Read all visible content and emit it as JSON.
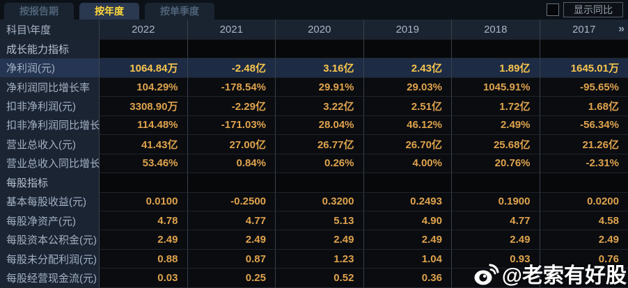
{
  "tabs": [
    {
      "id": "by-report-period",
      "label": "按报告期",
      "active": false
    },
    {
      "id": "by-year",
      "label": "按年度",
      "active": true
    },
    {
      "id": "by-quarter",
      "label": "按单季度",
      "active": false
    }
  ],
  "controls": {
    "show_yoy_label": "显示同比",
    "show_yoy_checked": false
  },
  "table": {
    "corner_header": "科目\\年度",
    "year_columns": [
      "2022",
      "2021",
      "2020",
      "2019",
      "2018",
      "2017"
    ],
    "more_icon": "»",
    "rows": [
      {
        "type": "section",
        "label": "成长能力指标"
      },
      {
        "type": "data",
        "label": "净利润(元)",
        "highlight": true,
        "values": [
          "1064.84万",
          "-2.48亿",
          "3.16亿",
          "2.43亿",
          "1.89亿",
          "1645.01万"
        ]
      },
      {
        "type": "data",
        "label": "净利润同比增长率",
        "values": [
          "104.29%",
          "-178.54%",
          "29.91%",
          "29.03%",
          "1045.91%",
          "-95.65%"
        ]
      },
      {
        "type": "data",
        "label": "扣非净利润(元)",
        "values": [
          "3308.90万",
          "-2.29亿",
          "3.22亿",
          "2.51亿",
          "1.72亿",
          "1.68亿"
        ]
      },
      {
        "type": "data",
        "label": "扣非净利润同比增长率",
        "values": [
          "114.48%",
          "-171.03%",
          "28.04%",
          "46.12%",
          "2.49%",
          "-56.34%"
        ]
      },
      {
        "type": "data",
        "label": "营业总收入(元)",
        "values": [
          "41.43亿",
          "27.00亿",
          "26.77亿",
          "26.70亿",
          "25.68亿",
          "21.26亿"
        ]
      },
      {
        "type": "data",
        "label": "营业总收入同比增长率",
        "values": [
          "53.46%",
          "0.84%",
          "0.26%",
          "4.00%",
          "20.76%",
          "-2.31%"
        ]
      },
      {
        "type": "section",
        "label": "每股指标"
      },
      {
        "type": "data",
        "label": "基本每股收益(元)",
        "values": [
          "0.0100",
          "-0.2500",
          "0.3200",
          "0.2493",
          "0.1900",
          "0.0200"
        ]
      },
      {
        "type": "data",
        "label": "每股净资产(元)",
        "values": [
          "4.78",
          "4.77",
          "5.13",
          "4.90",
          "4.77",
          "4.58"
        ]
      },
      {
        "type": "data",
        "label": "每股资本公积金(元)",
        "values": [
          "2.49",
          "2.49",
          "2.49",
          "2.49",
          "2.49",
          "2.49"
        ]
      },
      {
        "type": "data",
        "label": "每股未分配利润(元)",
        "values": [
          "0.88",
          "0.87",
          "1.23",
          "1.04",
          "0.93",
          "0.76"
        ]
      },
      {
        "type": "data",
        "label": "每股经营现金流(元)",
        "values": [
          "0.03",
          "0.25",
          "0.52",
          "0.36",
          "",
          ""
        ]
      }
    ]
  },
  "watermark": {
    "icon": "weibo-logo",
    "text": "@老索有好股"
  },
  "colors": {
    "accent_value": "#dfa34d",
    "highlight_value": "#f7c54e",
    "active_tab_text": "#ffd93b",
    "header_bg": "#1a2330",
    "highlight_row_bg": "#1d2b44"
  }
}
